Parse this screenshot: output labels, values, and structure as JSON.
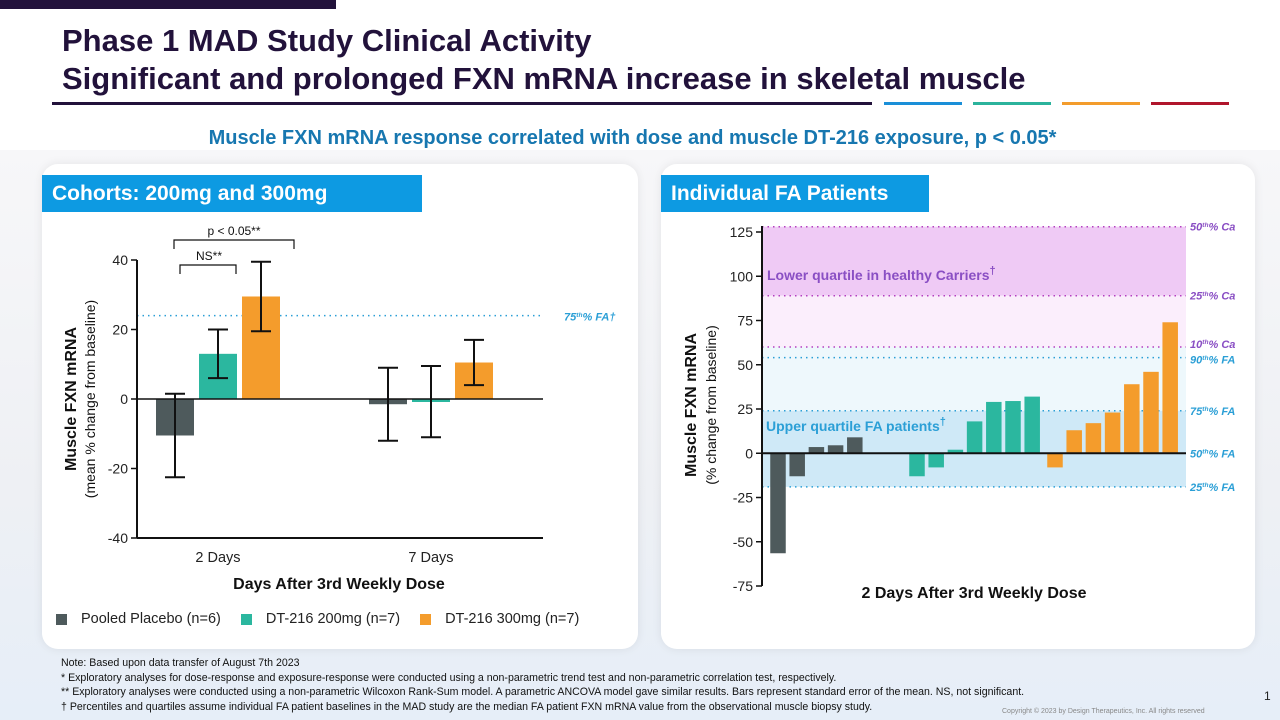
{
  "slide": {
    "title_line1": "Phase 1 MAD Study Clinical Activity",
    "title_line2": "Significant and prolonged FXN mRNA increase in skeletal muscle",
    "subtitle": "Muscle FXN mRNA response correlated with dose and muscle DT-216 exposure, p < 0.05*",
    "rule_colors": [
      "#22123b",
      "#1a8fd8",
      "#2bb39c",
      "#f39c2c",
      "#b0152c"
    ],
    "page_number": "1",
    "copyright": "Copyright © 2023 by Design Therapeutics, Inc. All rights reserved"
  },
  "colors": {
    "placebo": "#4e5a5c",
    "dose200": "#2bb79f",
    "dose300": "#f49c2c",
    "fa_blue": "#2b9fd6",
    "carrier_purple": "#8a4fc4"
  },
  "legend": [
    {
      "label": "Pooled Placebo (n=6)",
      "color": "#4e5a5c"
    },
    {
      "label": "DT-216 200mg (n=7)",
      "color": "#2bb79f"
    },
    {
      "label": "DT-216 300mg (n=7)",
      "color": "#f49c2c"
    }
  ],
  "notes": [
    "Note: Based upon data transfer of August 7th 2023",
    "*  Exploratory analyses for dose-response and exposure-response were conducted using a non-parametric trend test and non-parametric correlation test, respectively.",
    "** Exploratory analyses were conducted using a non-parametric Wilcoxon Rank-Sum model. A parametric ANCOVA model gave similar results. Bars represent standard error of the mean. NS, not significant.",
    "† Percentiles and quartiles assume individual FA patient baselines in the MAD  study are the median FA patient FXN  mRNA value from the observational muscle biopsy study."
  ],
  "chart_data": [
    {
      "type": "bar",
      "panel_title": "Cohorts: 200mg and 300mg",
      "title": "",
      "xlabel": "Days After 3rd Weekly Dose",
      "ylabel": "Muscle FXN mRNA",
      "ylabel_sub": "(mean % change from baseline)",
      "ylim": [
        -40,
        40
      ],
      "yticks": [
        40,
        20,
        0,
        -20,
        -40
      ],
      "categories": [
        "2 Days",
        "7 Days"
      ],
      "series": [
        {
          "name": "Pooled Placebo (n=6)",
          "values": [
            -10.5,
            -1.5
          ],
          "err_high": [
            1.5,
            9
          ],
          "err_low": [
            -22.5,
            -12
          ]
        },
        {
          "name": "DT-216 200mg (n=7)",
          "values": [
            13,
            -0.5
          ],
          "err_high": [
            20,
            9.5
          ],
          "err_low": [
            6,
            -11
          ]
        },
        {
          "name": "DT-216 300mg (n=7)",
          "values": [
            29.5,
            10.5
          ],
          "err_high": [
            39.5,
            17
          ],
          "err_low": [
            19.5,
            4
          ]
        }
      ],
      "reference_lines": [
        {
          "value": 24,
          "label": "75th% FA†"
        }
      ],
      "annotations": [
        {
          "text": "p < 0.05**",
          "between": [
            "Pooled Placebo",
            "DT-216 300mg"
          ],
          "category": "2 Days"
        },
        {
          "text": "NS**",
          "between": [
            "Pooled Placebo",
            "DT-216 200mg"
          ],
          "category": "2 Days"
        }
      ],
      "legend_position": "bottom"
    },
    {
      "type": "bar",
      "panel_title": "Individual FA Patients",
      "title": "",
      "xlabel": "2 Days After 3rd Weekly Dose",
      "ylabel": "Muscle FXN mRNA",
      "ylabel_sub": "(% change from baseline)",
      "ylim": [
        -75,
        125
      ],
      "yticks": [
        125,
        100,
        75,
        50,
        25,
        0,
        -25,
        -50,
        -75
      ],
      "series": [
        {
          "name": "Pooled Placebo",
          "values": [
            -56.5,
            -13,
            3.5,
            4.5,
            9
          ]
        },
        {
          "name": "DT-216 200mg",
          "values": [
            -13,
            -8,
            2,
            18,
            29,
            29.5,
            32
          ]
        },
        {
          "name": "DT-216 300mg",
          "values": [
            -8,
            13,
            17,
            23,
            39,
            46,
            74
          ]
        }
      ],
      "reference_lines": [
        {
          "value": 128,
          "label": "50th% Ca",
          "group": "carrier"
        },
        {
          "value": 89,
          "label": "25th% Ca",
          "group": "carrier"
        },
        {
          "value": 60,
          "label": "10th% Ca",
          "group": "carrier"
        },
        {
          "value": 54,
          "label": "90th% FA",
          "group": "fa"
        },
        {
          "value": 24,
          "label": "75th% FA",
          "group": "fa"
        },
        {
          "value": 0,
          "label": "50th% FA",
          "group": "fa"
        },
        {
          "value": -19,
          "label": "25th% FA",
          "group": "fa"
        }
      ],
      "bands": [
        {
          "label": "Lower quartile in healthy Carriers†",
          "from": 89,
          "to": 128
        },
        {
          "label": "Upper quartile FA patients†",
          "from": -19,
          "to": 24
        }
      ],
      "legend_position": "none"
    }
  ]
}
